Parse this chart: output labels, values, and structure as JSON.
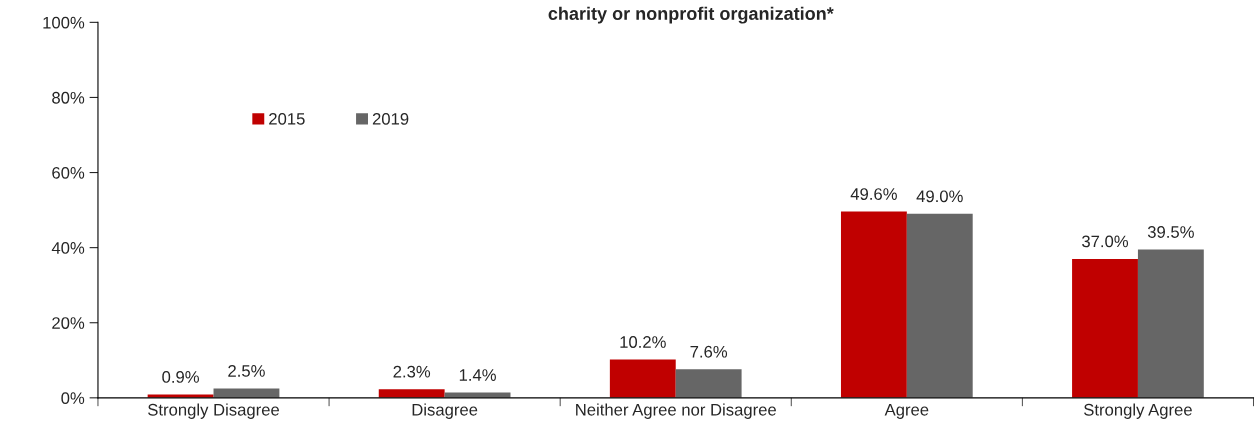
{
  "chart_data": {
    "type": "bar",
    "title": "charity or nonprofit organization*",
    "categories": [
      "Strongly Disagree",
      "Disagree",
      "Neither Agree nor Disagree",
      "Agree",
      "Strongly Agree"
    ],
    "series": [
      {
        "name": "2015",
        "color": "#c00000",
        "values": [
          0.9,
          2.3,
          10.2,
          49.6,
          37.0
        ],
        "value_labels": [
          "0.9%",
          "2.3%",
          "10.2%",
          "49.6%",
          "37.0%"
        ]
      },
      {
        "name": "2019",
        "color": "#666666",
        "values": [
          2.5,
          1.4,
          7.6,
          49.0,
          39.5
        ],
        "value_labels": [
          "2.5%",
          "1.4%",
          "7.6%",
          "49.0%",
          "39.5%"
        ]
      }
    ],
    "ylim": [
      0,
      100
    ],
    "yticks": [
      {
        "value": 0,
        "label": "0%"
      },
      {
        "value": 20,
        "label": "20%"
      },
      {
        "value": 40,
        "label": "40%"
      },
      {
        "value": 60,
        "label": "60%"
      },
      {
        "value": 80,
        "label": "80%"
      },
      {
        "value": 100,
        "label": "100%"
      }
    ],
    "grid": false,
    "legend": "top left"
  }
}
